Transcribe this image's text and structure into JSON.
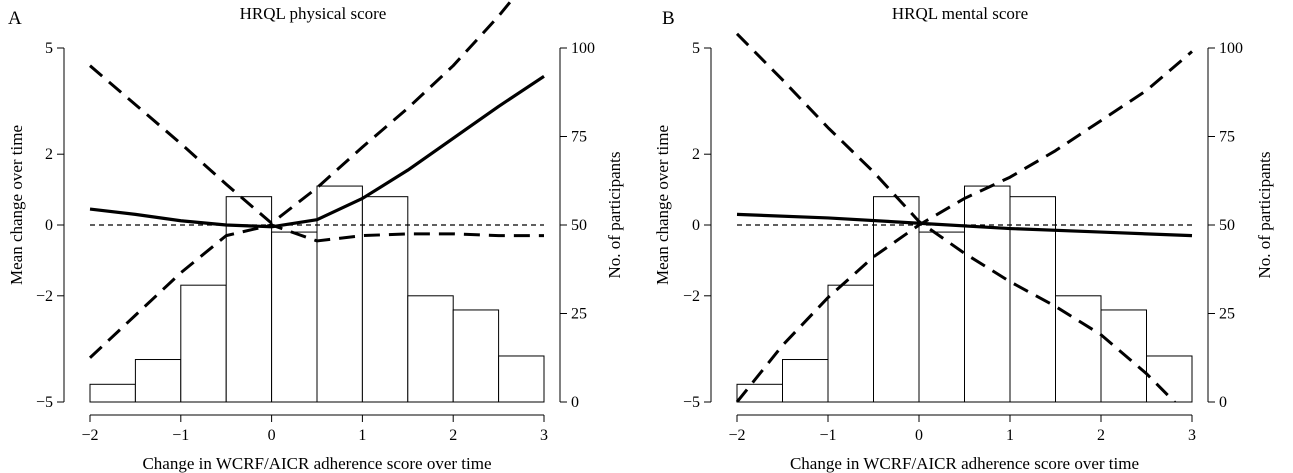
{
  "chart_data": [
    {
      "type": "bar+line",
      "panel_label": "A",
      "title": "HRQL physical score",
      "xlabel": "Change in WCRF/AICR adherence score over time",
      "ylabel": "Mean change over time",
      "y2label": "No. of participants",
      "xlim": [
        -2,
        3
      ],
      "ylim": [
        -5,
        5
      ],
      "y2lim": [
        0,
        100
      ],
      "x_ticks": [
        "−2",
        "−1",
        "0",
        "1",
        "2",
        "3"
      ],
      "y_ticks": [
        "−5",
        "−2",
        "0",
        "2",
        "5"
      ],
      "y2_ticks": [
        "0",
        "25",
        "50",
        "75",
        "100"
      ],
      "histogram": {
        "bin_edges": [
          -2,
          -1.5,
          -1,
          -0.5,
          0,
          0.5,
          1,
          1.5,
          2,
          2.5,
          3
        ],
        "counts": [
          5,
          12,
          33,
          58,
          48,
          61,
          58,
          30,
          26,
          13
        ]
      },
      "reference_y": 0,
      "series": [
        {
          "role": "estimate",
          "line_style": "solid",
          "x": [
            -2,
            -1.5,
            -1,
            -0.5,
            0,
            0.5,
            1,
            1.5,
            2,
            2.5,
            3
          ],
          "y": [
            0.45,
            0.3,
            0.12,
            0.0,
            -0.05,
            0.15,
            0.75,
            1.55,
            2.45,
            3.35,
            4.2
          ]
        },
        {
          "role": "upper_ci",
          "line_style": "dashed",
          "x": [
            -2,
            -1.5,
            -1,
            -0.5,
            0,
            0.5,
            1,
            1.5,
            2,
            2.5,
            2.85
          ],
          "y": [
            4.5,
            3.4,
            2.3,
            1.15,
            0.05,
            1.05,
            2.2,
            3.3,
            4.5,
            5.9,
            7.0
          ]
        },
        {
          "role": "lower_ci",
          "line_style": "dashed",
          "x": [
            -2,
            -1.5,
            -1,
            -0.5,
            0,
            0.5,
            1,
            1.5,
            2,
            2.5,
            3
          ],
          "y": [
            -3.75,
            -2.55,
            -1.35,
            -0.3,
            0.0,
            -0.45,
            -0.3,
            -0.25,
            -0.25,
            -0.3,
            -0.3
          ]
        }
      ]
    },
    {
      "type": "bar+line",
      "panel_label": "B",
      "title": "HRQL mental score",
      "xlabel": "Change in WCRF/AICR adherence score over time",
      "ylabel": "Mean change over time",
      "y2label": "No. of participants",
      "xlim": [
        -2,
        3
      ],
      "ylim": [
        -5,
        5
      ],
      "y2lim": [
        0,
        100
      ],
      "x_ticks": [
        "−2",
        "−1",
        "0",
        "1",
        "2",
        "3"
      ],
      "y_ticks": [
        "−5",
        "−2",
        "0",
        "2",
        "5"
      ],
      "y2_ticks": [
        "0",
        "25",
        "50",
        "75",
        "100"
      ],
      "histogram": {
        "bin_edges": [
          -2,
          -1.5,
          -1,
          -0.5,
          0,
          0.5,
          1,
          1.5,
          2,
          2.5,
          3
        ],
        "counts": [
          5,
          12,
          33,
          58,
          48,
          61,
          58,
          30,
          26,
          13
        ]
      },
      "reference_y": 0,
      "series": [
        {
          "role": "estimate",
          "line_style": "solid",
          "x": [
            -2,
            -1,
            0,
            1,
            2,
            3
          ],
          "y": [
            0.3,
            0.2,
            0.05,
            -0.1,
            -0.2,
            -0.3
          ]
        },
        {
          "role": "upper_ci",
          "line_style": "dashed",
          "x": [
            -2,
            -1.5,
            -1,
            -0.5,
            0,
            0.5,
            1,
            1.5,
            2,
            2.5,
            3
          ],
          "y": [
            5.4,
            4.1,
            2.75,
            1.5,
            0.1,
            -0.8,
            -1.6,
            -2.3,
            -3.1,
            -4.2,
            -5.5
          ]
        },
        {
          "role": "lower_ci",
          "line_style": "dashed",
          "x": [
            -2,
            -1.5,
            -1,
            -0.5,
            0,
            0.5,
            1,
            1.5,
            2,
            2.5,
            3
          ],
          "y": [
            -5.0,
            -3.4,
            -2.05,
            -0.9,
            0.0,
            0.75,
            1.35,
            2.1,
            2.95,
            3.8,
            4.9
          ]
        }
      ]
    }
  ]
}
